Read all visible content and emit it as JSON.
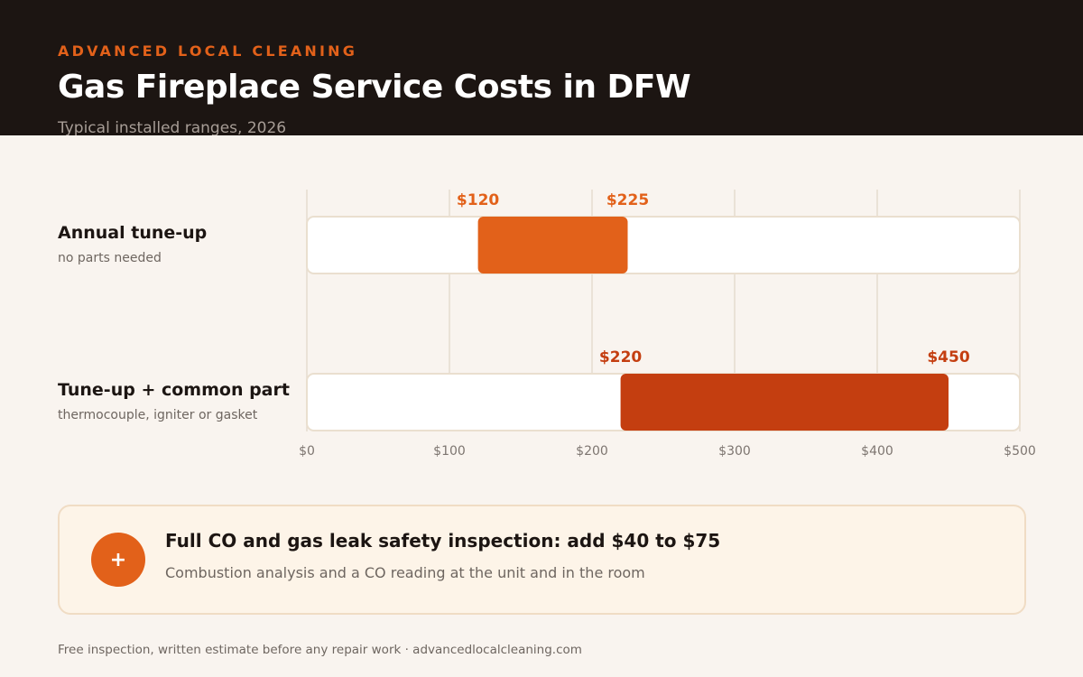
{
  "header": {
    "brand": "ADVANCED LOCAL CLEANING",
    "title": "Gas Fireplace Service Costs in DFW",
    "subtitle": "Typical installed ranges, 2026"
  },
  "rows": [
    {
      "label": "Annual tune-up",
      "sublabel": "no parts needed"
    },
    {
      "label": "Tune-up + common part",
      "sublabel": "thermocouple, igniter or gasket"
    }
  ],
  "chart_data": {
    "type": "range-bar",
    "categories": [
      "Annual tune-up",
      "Tune-up + common part"
    ],
    "ranges": [
      {
        "category": "Annual tune-up",
        "low": 120,
        "high": 225,
        "low_label": "$120",
        "high_label": "$225",
        "color": "#e2611a"
      },
      {
        "category": "Tune-up + common part",
        "low": 220,
        "high": 450,
        "low_label": "$220",
        "high_label": "$450",
        "color": "#c43e10"
      }
    ],
    "xlim": [
      0,
      500
    ],
    "ticks": [
      0,
      100,
      200,
      300,
      400,
      500
    ],
    "tick_labels": [
      "$0",
      "$100",
      "$200",
      "$300",
      "$400",
      "$500"
    ],
    "grid": true
  },
  "callout": {
    "icon": "plus-icon",
    "icon_glyph": "+",
    "title": "Full CO and gas leak safety inspection: add $40 to $75",
    "text": "Combustion analysis and a CO reading at the unit and in the room"
  },
  "footer": "Free inspection, written estimate before any repair work · advancedlocalcleaning.com",
  "colors": {
    "header_bg": "#1c1512",
    "accent": "#e2611a",
    "accent_dark": "#c43e10",
    "page_bg": "#f9f4ef"
  }
}
